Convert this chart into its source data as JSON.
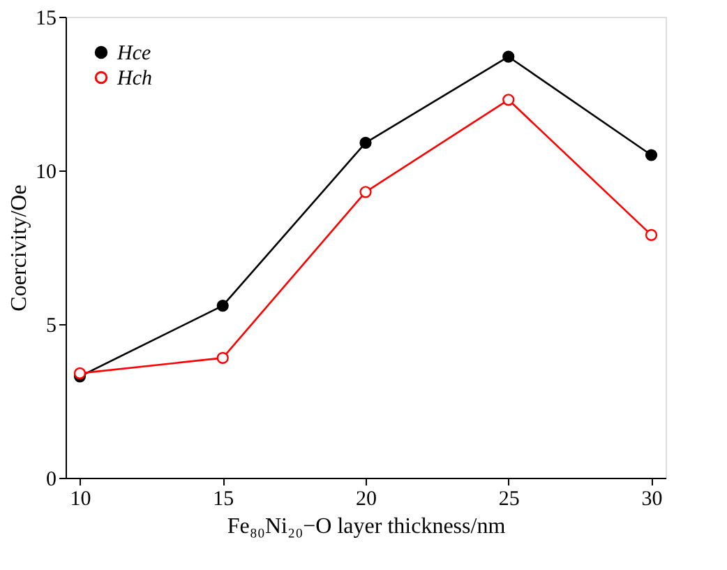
{
  "chart_data": {
    "type": "line",
    "xlabel": "Fe₈₀Ni₂₀−O layer thickness/nm",
    "ylabel": "Coercivity/Oe",
    "x": [
      10,
      15,
      20,
      25,
      30
    ],
    "series": [
      {
        "name": "Hce",
        "color": "#000000",
        "values": [
          3.3,
          5.6,
          10.9,
          13.7,
          10.5
        ]
      },
      {
        "name": "Hch",
        "color": "#ff0000",
        "values": [
          3.4,
          3.9,
          9.3,
          12.3,
          7.9
        ]
      }
    ],
    "xlim": [
      9.5,
      30.5
    ],
    "xticks": [
      10,
      15,
      20,
      25,
      30
    ],
    "ylim": [
      0,
      15
    ],
    "yticks": [
      0,
      5,
      10,
      15
    ],
    "grid": false,
    "legend": "top left",
    "marker": "circle",
    "line_style": "solid"
  }
}
